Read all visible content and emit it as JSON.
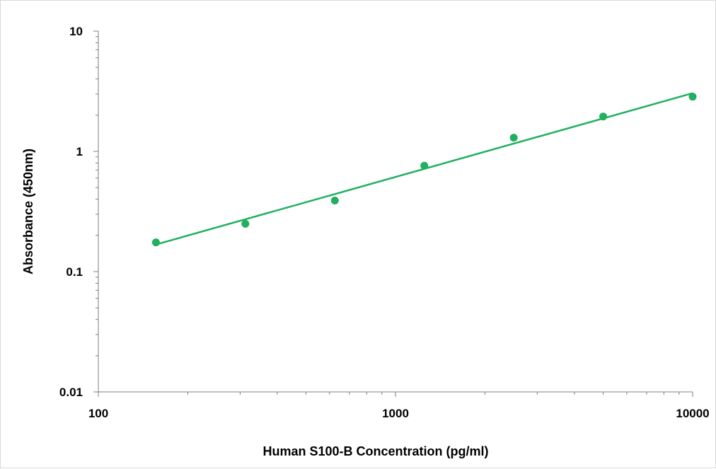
{
  "chart_data": {
    "type": "scatter",
    "title": "",
    "xlabel": "Human S100-B Concentration (pg/ml)",
    "ylabel": "Absorbance (450nm)",
    "x_scale": "log",
    "y_scale": "log",
    "xlim": [
      100,
      10000
    ],
    "ylim": [
      0.01,
      10
    ],
    "x_ticks": [
      "100",
      "1000",
      "10000"
    ],
    "y_ticks": [
      "10",
      "1",
      "0.1",
      "0.01"
    ],
    "grid": false,
    "legend": "none",
    "series": [
      {
        "x": [
          156.25,
          312.5,
          625,
          1250,
          2500,
          5000,
          10000
        ],
        "y": [
          0.175,
          0.25,
          0.39,
          0.76,
          1.3,
          1.95,
          2.85
        ],
        "color": "#20b060",
        "marker": "circle"
      }
    ],
    "trendline": {
      "x": [
        156.25,
        10000
      ],
      "y": [
        0.168,
        3.05
      ],
      "color": "#20b060"
    }
  }
}
